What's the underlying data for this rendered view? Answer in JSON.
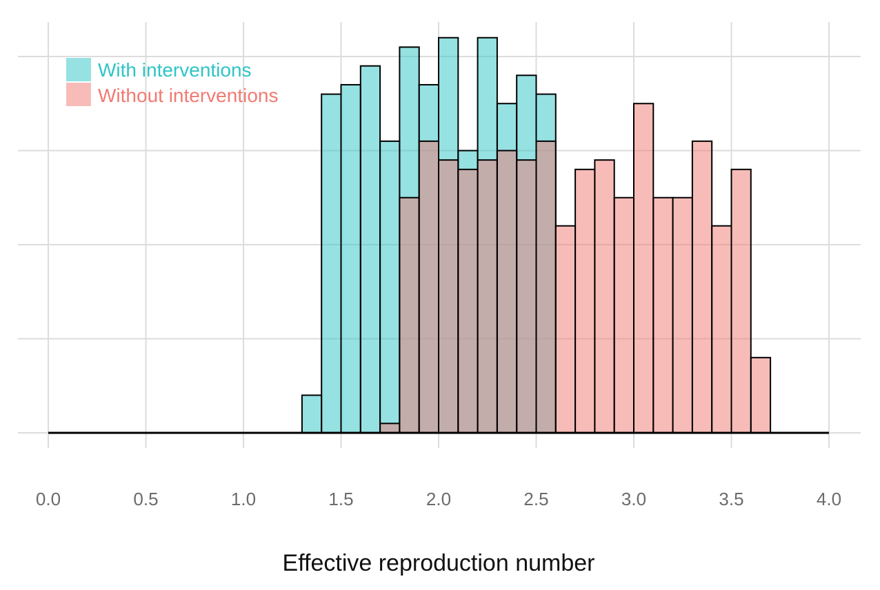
{
  "chart_data": {
    "type": "histogram",
    "title": "",
    "xlabel": "Effective reproduction number",
    "ylabel": "",
    "xlim": [
      0.0,
      4.0
    ],
    "ylim": [
      0,
      42
    ],
    "x_ticks": [
      0.0,
      0.5,
      1.0,
      1.5,
      2.0,
      2.5,
      3.0,
      3.5,
      4.0
    ],
    "x_tick_labels": [
      "0.0",
      "0.5",
      "1.0",
      "1.5",
      "2.0",
      "2.5",
      "3.0",
      "3.5",
      "4.0"
    ],
    "y_gridlines": [
      0,
      10,
      20,
      30,
      40
    ],
    "y_tick_labels_visible": false,
    "grid": true,
    "bin_width": 0.1,
    "bin_start": 1.3,
    "series": [
      {
        "name": "With interventions",
        "color": "#2ec4c6",
        "fill": "#93dedf",
        "counts": [
          4,
          36,
          37,
          39,
          31,
          41,
          37,
          42,
          30,
          42,
          35,
          38,
          36,
          0,
          0,
          0,
          0,
          0,
          0,
          0,
          0,
          0,
          0,
          0
        ]
      },
      {
        "name": "Without interventions",
        "color": "#f07a72",
        "fill": "#f8b6b2",
        "counts": [
          0,
          0,
          0,
          0,
          1,
          25,
          31,
          29,
          28,
          29,
          30,
          29,
          31,
          22,
          28,
          29,
          25,
          35,
          25,
          25,
          31,
          22,
          28,
          8
        ]
      }
    ],
    "legend": {
      "position": "top-left",
      "entries": [
        "With interventions",
        "Without interventions"
      ]
    }
  }
}
